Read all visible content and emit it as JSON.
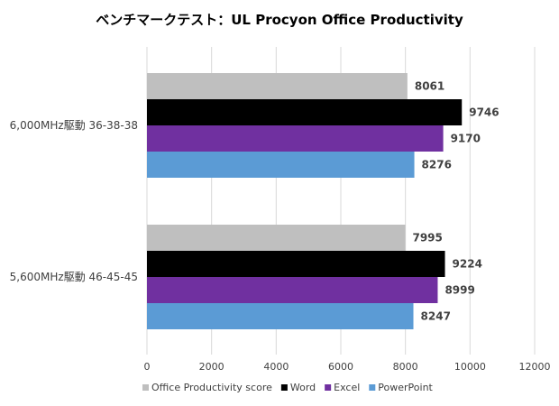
{
  "chart_data": {
    "type": "bar",
    "orientation": "horizontal",
    "title": "ベンチマークテスト：UL Procyon Office Productivity",
    "categories": [
      "6,000MHz駆動 36-38-38",
      "5,600MHz駆動 46-45-45"
    ],
    "series": [
      {
        "name": "Office Productivity score",
        "color": "#bfbfbf",
        "values": [
          8061,
          7995
        ]
      },
      {
        "name": "Word",
        "color": "#000000",
        "values": [
          9746,
          9224
        ]
      },
      {
        "name": "Excel",
        "color": "#7030a0",
        "values": [
          9170,
          8999
        ]
      },
      {
        "name": "PowerPoint",
        "color": "#5b9bd5",
        "values": [
          8276,
          8247
        ]
      }
    ],
    "xlim": [
      0,
      12000
    ],
    "xticks": [
      0,
      2000,
      4000,
      6000,
      8000,
      10000,
      12000
    ],
    "xlabel": "",
    "ylabel": "",
    "grid": true,
    "legend": "bottom"
  }
}
